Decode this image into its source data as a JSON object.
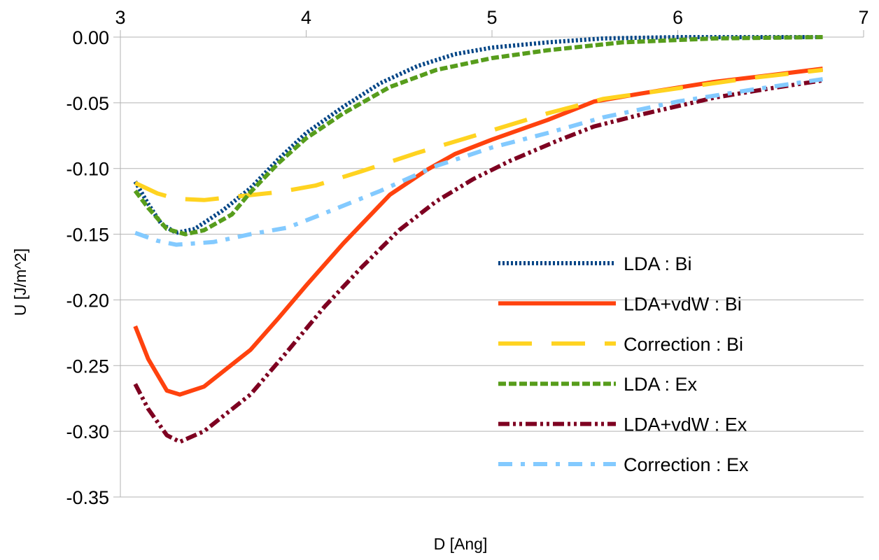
{
  "chart_data": {
    "type": "line",
    "title": "",
    "xlabel": "D [Ang]",
    "ylabel": "U [J/m^2]",
    "xlim": [
      3,
      7
    ],
    "ylim": [
      -0.35,
      0.0
    ],
    "x_ticks": [
      3,
      4,
      5,
      6,
      7
    ],
    "x_tick_labels": [
      "3",
      "4",
      "5",
      "6",
      "7"
    ],
    "y_ticks": [
      0.0,
      -0.05,
      -0.1,
      -0.15,
      -0.2,
      -0.25,
      -0.3,
      -0.35
    ],
    "y_tick_labels": [
      "0.00",
      "-0.05",
      "-0.10",
      "-0.15",
      "-0.20",
      "-0.25",
      "-0.30",
      "-0.35"
    ],
    "x_axis_position": "top",
    "grid": "horizontal",
    "legend_position": "inside-bottom-right",
    "series": [
      {
        "name": "LDA : Bi",
        "color": "#004586",
        "dash": "dotted",
        "points": [
          [
            3.08,
            -0.11
          ],
          [
            3.15,
            -0.127
          ],
          [
            3.22,
            -0.142
          ],
          [
            3.3,
            -0.149
          ],
          [
            3.4,
            -0.146
          ],
          [
            3.55,
            -0.132
          ],
          [
            3.7,
            -0.115
          ],
          [
            3.85,
            -0.093
          ],
          [
            4.0,
            -0.073
          ],
          [
            4.2,
            -0.053
          ],
          [
            4.4,
            -0.035
          ],
          [
            4.6,
            -0.022
          ],
          [
            4.8,
            -0.013
          ],
          [
            5.0,
            -0.008
          ],
          [
            5.3,
            -0.004
          ],
          [
            5.6,
            -0.001
          ],
          [
            6.0,
            0.0
          ],
          [
            6.4,
            0.0
          ],
          [
            6.78,
            0.0
          ]
        ]
      },
      {
        "name": "LDA+vdW : Bi",
        "color": "#ff420e",
        "dash": "solid",
        "points": [
          [
            3.08,
            -0.22
          ],
          [
            3.15,
            -0.245
          ],
          [
            3.25,
            -0.269
          ],
          [
            3.32,
            -0.272
          ],
          [
            3.45,
            -0.266
          ],
          [
            3.7,
            -0.238
          ],
          [
            3.85,
            -0.214
          ],
          [
            4.0,
            -0.189
          ],
          [
            4.2,
            -0.157
          ],
          [
            4.45,
            -0.12
          ],
          [
            4.65,
            -0.101
          ],
          [
            4.8,
            -0.089
          ],
          [
            5.0,
            -0.078
          ],
          [
            5.3,
            -0.063
          ],
          [
            5.55,
            -0.049
          ],
          [
            5.8,
            -0.043
          ],
          [
            6.2,
            -0.034
          ],
          [
            6.5,
            -0.029
          ],
          [
            6.78,
            -0.024
          ]
        ]
      },
      {
        "name": "Correction : Bi",
        "color": "#ffd320",
        "dash": "long-dash",
        "points": [
          [
            3.08,
            -0.111
          ],
          [
            3.2,
            -0.119
          ],
          [
            3.3,
            -0.123
          ],
          [
            3.45,
            -0.124
          ],
          [
            3.65,
            -0.121
          ],
          [
            3.85,
            -0.118
          ],
          [
            4.05,
            -0.113
          ],
          [
            4.3,
            -0.102
          ],
          [
            4.6,
            -0.088
          ],
          [
            5.0,
            -0.071
          ],
          [
            5.3,
            -0.058
          ],
          [
            5.6,
            -0.047
          ],
          [
            6.0,
            -0.039
          ],
          [
            6.4,
            -0.031
          ],
          [
            6.78,
            -0.025
          ]
        ]
      },
      {
        "name": "LDA : Ex",
        "color": "#579d1c",
        "dash": "dashed",
        "points": [
          [
            3.08,
            -0.117
          ],
          [
            3.15,
            -0.13
          ],
          [
            3.25,
            -0.146
          ],
          [
            3.35,
            -0.15
          ],
          [
            3.45,
            -0.147
          ],
          [
            3.6,
            -0.135
          ],
          [
            3.7,
            -0.118
          ],
          [
            3.85,
            -0.096
          ],
          [
            4.0,
            -0.077
          ],
          [
            4.2,
            -0.058
          ],
          [
            4.45,
            -0.038
          ],
          [
            4.7,
            -0.025
          ],
          [
            5.0,
            -0.016
          ],
          [
            5.3,
            -0.01
          ],
          [
            5.7,
            -0.004
          ],
          [
            6.2,
            -0.001
          ],
          [
            6.78,
            0.0
          ]
        ]
      },
      {
        "name": "LDA+vdW : Ex",
        "color": "#7e0021",
        "dash": "dash-dot-dot",
        "points": [
          [
            3.08,
            -0.264
          ],
          [
            3.15,
            -0.283
          ],
          [
            3.25,
            -0.303
          ],
          [
            3.32,
            -0.308
          ],
          [
            3.45,
            -0.3
          ],
          [
            3.7,
            -0.272
          ],
          [
            3.9,
            -0.239
          ],
          [
            4.1,
            -0.205
          ],
          [
            4.3,
            -0.175
          ],
          [
            4.5,
            -0.147
          ],
          [
            4.7,
            -0.125
          ],
          [
            4.9,
            -0.108
          ],
          [
            5.1,
            -0.094
          ],
          [
            5.35,
            -0.079
          ],
          [
            5.55,
            -0.068
          ],
          [
            5.8,
            -0.059
          ],
          [
            6.2,
            -0.046
          ],
          [
            6.5,
            -0.039
          ],
          [
            6.78,
            -0.033
          ]
        ]
      },
      {
        "name": "Correction : Ex",
        "color": "#83caff",
        "dash": "dash-dot",
        "points": [
          [
            3.08,
            -0.149
          ],
          [
            3.2,
            -0.155
          ],
          [
            3.3,
            -0.158
          ],
          [
            3.5,
            -0.156
          ],
          [
            3.7,
            -0.15
          ],
          [
            3.9,
            -0.145
          ],
          [
            4.1,
            -0.134
          ],
          [
            4.4,
            -0.117
          ],
          [
            4.7,
            -0.098
          ],
          [
            5.0,
            -0.084
          ],
          [
            5.3,
            -0.073
          ],
          [
            5.6,
            -0.061
          ],
          [
            6.0,
            -0.049
          ],
          [
            6.4,
            -0.04
          ],
          [
            6.78,
            -0.032
          ]
        ]
      }
    ]
  }
}
